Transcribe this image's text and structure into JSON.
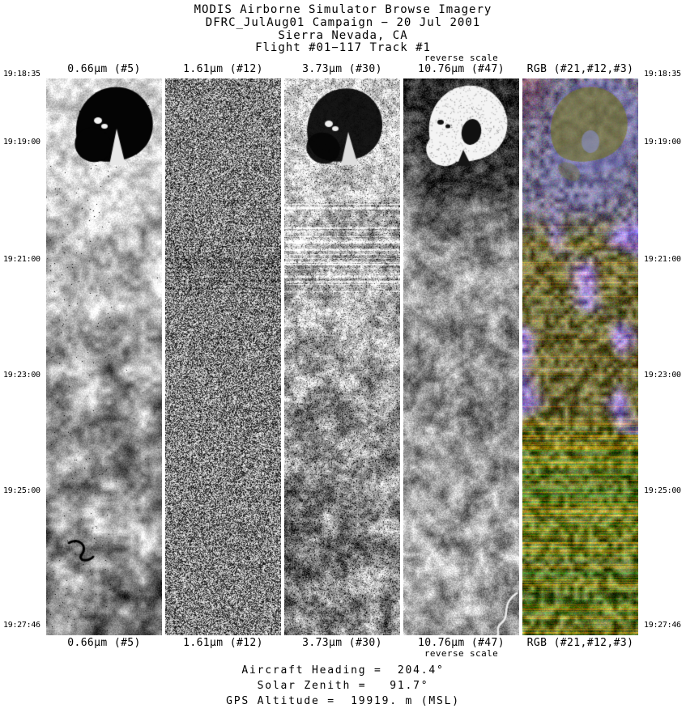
{
  "header": {
    "title_line1": "MODIS Airborne Simulator Browse Imagery",
    "title_line2": "DFRC_JulAug01 Campaign − 20 Jul 2001",
    "title_line3": "Sierra Nevada, CA",
    "title_line4": "Flight #01−117 Track #1"
  },
  "panels": [
    {
      "label": "0.66µm (#5)"
    },
    {
      "label": "1.61µm (#12)"
    },
    {
      "label": "3.73µm (#30)"
    },
    {
      "label": "10.76µm (#47)",
      "note": "reverse scale"
    },
    {
      "label": "RGB (#21,#12,#3)"
    }
  ],
  "time_labels": [
    "19:18:35",
    "19:19:00",
    "19:21:00",
    "19:23:00",
    "19:25:00",
    "19:27:46"
  ],
  "footer": {
    "line1": "Aircraft Heading =  204.4°",
    "line2": "Solar Zenith =   91.7°",
    "line3": "GPS Altitude =  19919. m (MSL)"
  }
}
